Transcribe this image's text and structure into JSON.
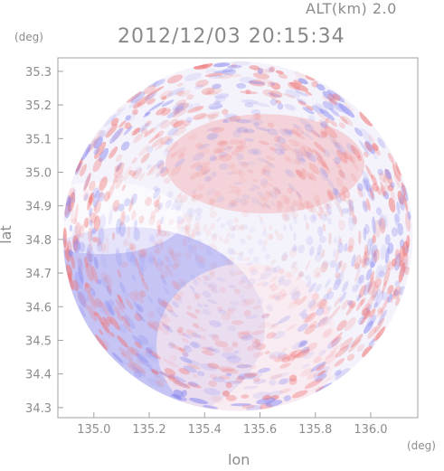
{
  "header": {
    "altitude_label": "ALT(km) 2.0",
    "timestamp": "2012/12/03 20:15:34"
  },
  "chart_data": {
    "type": "heatmap",
    "title": "2012/12/03 20:15:34",
    "subtitle": "ALT(km) 2.0",
    "xlabel": "lon",
    "ylabel": "lat",
    "xunit": "(deg)",
    "yunit": "(deg)",
    "xlim": [
      134.87,
      136.17
    ],
    "ylim": [
      34.27,
      35.34
    ],
    "xticks": [
      "135.0",
      "135.2",
      "135.4",
      "135.6",
      "135.8",
      "136.0"
    ],
    "xtick_values": [
      135.0,
      135.2,
      135.4,
      135.6,
      135.8,
      136.0
    ],
    "yticks": [
      "34.3",
      "34.4",
      "34.5",
      "34.6",
      "34.7",
      "34.8",
      "34.9",
      "35.0",
      "35.1",
      "35.2",
      "35.3"
    ],
    "ytick_values": [
      34.3,
      34.4,
      34.5,
      34.6,
      34.7,
      34.8,
      34.9,
      35.0,
      35.1,
      35.2,
      35.3
    ],
    "radar_center": [
      135.52,
      34.81
    ],
    "radar_radius_deg_lat": 0.52,
    "colors": {
      "positive": "#f07878",
      "negative": "#8c8cf0",
      "neutral": "#f4f2fa",
      "frame": "#a0a0a0"
    }
  }
}
